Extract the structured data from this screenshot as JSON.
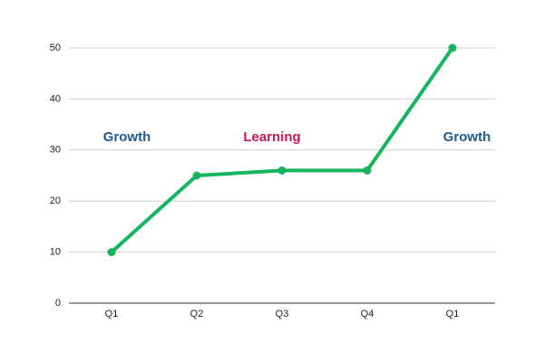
{
  "chart_data": {
    "type": "line",
    "categories": [
      "Q1",
      "Q2",
      "Q3",
      "Q4",
      "Q1"
    ],
    "series": [
      {
        "color": "#17b45e",
        "values": [
          10,
          25,
          26,
          26,
          50
        ]
      }
    ],
    "ylim": [
      0,
      50
    ],
    "yticks": [
      0,
      10,
      20,
      30,
      40,
      50
    ],
    "grid": true,
    "annotations": [
      {
        "text": "Growth",
        "color": "#1d5a8c"
      },
      {
        "text": "Learning",
        "color": "#c8174e"
      },
      {
        "text": "Growth",
        "color": "#1d5a8c"
      }
    ]
  }
}
